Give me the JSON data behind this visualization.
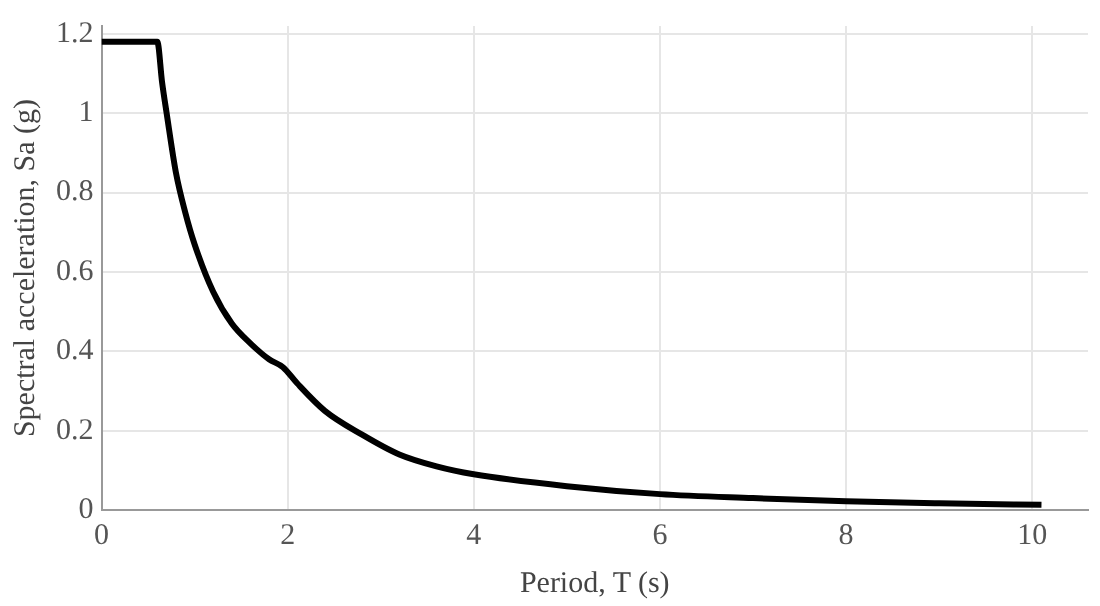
{
  "chart_data": {
    "type": "line",
    "xlabel": "Period, T (s)",
    "ylabel": "Spectral acceleration, Sa (g)",
    "x": [
      0,
      0.6,
      0.65,
      0.7,
      0.8,
      0.9,
      1,
      1.2,
      1.4,
      1.6,
      1.8,
      1.95,
      2.1,
      2.4,
      2.8,
      3.2,
      3.6,
      4,
      5,
      6,
      7,
      8,
      9,
      10.1
    ],
    "series": [
      {
        "color": "#000000",
        "values": [
          1.18,
          1.18,
          1.08,
          1.0,
          0.85,
          0.75,
          0.67,
          0.55,
          0.47,
          0.42,
          0.38,
          0.36,
          0.32,
          0.25,
          0.19,
          0.14,
          0.11,
          0.09,
          0.06,
          0.04,
          0.03,
          0.022,
          0.017,
          0.013
        ]
      }
    ],
    "xlim": [
      0,
      10.6
    ],
    "xticks": [
      0,
      2,
      4,
      6,
      8,
      10
    ],
    "ylim": [
      0,
      1.22
    ],
    "yticks": [
      0,
      0.2,
      0.4,
      0.6,
      0.8,
      1,
      1.2
    ],
    "grid": true,
    "legend": false,
    "marker": "none",
    "line_style": "solid"
  }
}
